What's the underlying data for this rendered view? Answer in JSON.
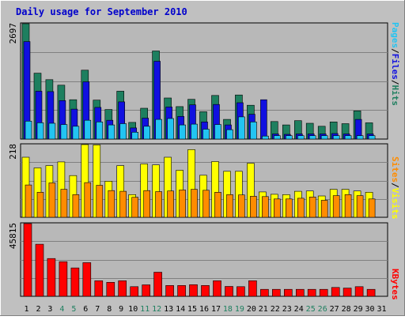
{
  "chart_data": {
    "type": "bar",
    "title": "Daily usage for September 2010",
    "x": [
      "1",
      "2",
      "3",
      "4",
      "5",
      "6",
      "7",
      "8",
      "9",
      "10",
      "11",
      "12",
      "13",
      "14",
      "15",
      "16",
      "17",
      "18",
      "19",
      "20",
      "21",
      "22",
      "23",
      "24",
      "25",
      "26",
      "27",
      "28",
      "29",
      "30",
      "31"
    ],
    "weekend_days": [
      4,
      5,
      11,
      12,
      18,
      19,
      25,
      26
    ],
    "panels": [
      {
        "id": "hits",
        "ymax_label": "2697",
        "ymax": 2697,
        "series": [
          {
            "name": "Hits",
            "color": "#1e7f5f",
            "values": [
              2697,
              1540,
              1390,
              1260,
              920,
              1610,
              910,
              690,
              1120,
              390,
              720,
              2060,
              960,
              760,
              930,
              640,
              1020,
              460,
              1030,
              790,
              0,
              410,
              330,
              430,
              370,
              300,
              400,
              360,
              660,
              380,
              0
            ]
          },
          {
            "name": "Files",
            "color": "#1010e0",
            "values": [
              2280,
              1120,
              1110,
              900,
              700,
              1340,
              740,
              440,
              870,
              260,
              490,
              1820,
              750,
              530,
              800,
              400,
              810,
              330,
              850,
              580,
              920,
              120,
              110,
              120,
              120,
              120,
              130,
              120,
              460,
              120,
              0
            ]
          },
          {
            "name": "Pages",
            "color": "#22c4f2",
            "values": [
              420,
              380,
              370,
              340,
              300,
              440,
              400,
              330,
              360,
              160,
              300,
              460,
              480,
              330,
              350,
              230,
              340,
              220,
              520,
              400,
              70,
              80,
              80,
              80,
              80,
              80,
              80,
              80,
              80,
              80,
              0
            ]
          }
        ]
      },
      {
        "id": "visits",
        "ymax_label": "218",
        "ymax": 218,
        "series": [
          {
            "name": "Visits",
            "color": "#ffff00",
            "values": [
              180,
              148,
              155,
              166,
              125,
              218,
              217,
              108,
              155,
              68,
              160,
              157,
              180,
              141,
              203,
              126,
              167,
              138,
              138,
              162,
              76,
              69,
              68,
              78,
              79,
              64,
              84,
              84,
              79,
              75,
              0
            ]
          },
          {
            "name": "Sites",
            "color": "#ff8c00",
            "values": [
              97,
              75,
              103,
              84,
              68,
              104,
              96,
              80,
              78,
              60,
              80,
              77,
              79,
              82,
              84,
              81,
              75,
              68,
              67,
              63,
              62,
              55,
              55,
              57,
              61,
              51,
              65,
              68,
              65,
              55,
              0
            ]
          }
        ]
      },
      {
        "id": "kbytes",
        "ymax_label": "45815",
        "ymax": 45815,
        "series": [
          {
            "name": "KBytes",
            "color": "#ff0000",
            "values": [
              45815,
              32800,
              23800,
              21800,
              17900,
              21200,
              9800,
              8800,
              9800,
              6100,
              7200,
              15200,
              6800,
              6800,
              7300,
              6800,
              9800,
              6200,
              6100,
              9800,
              4400,
              4400,
              4400,
              4400,
              4400,
              4400,
              5600,
              5200,
              6100,
              4400,
              0
            ]
          }
        ]
      }
    ]
  },
  "colors": {
    "page_bg": "#c0c0c0",
    "plot_bg": "#b8b8b8",
    "grid": "#808080",
    "title": "#0000cc",
    "weekday_label": "#000000",
    "weekend_label": "#1e7f5f",
    "separator": "#ffffff"
  }
}
